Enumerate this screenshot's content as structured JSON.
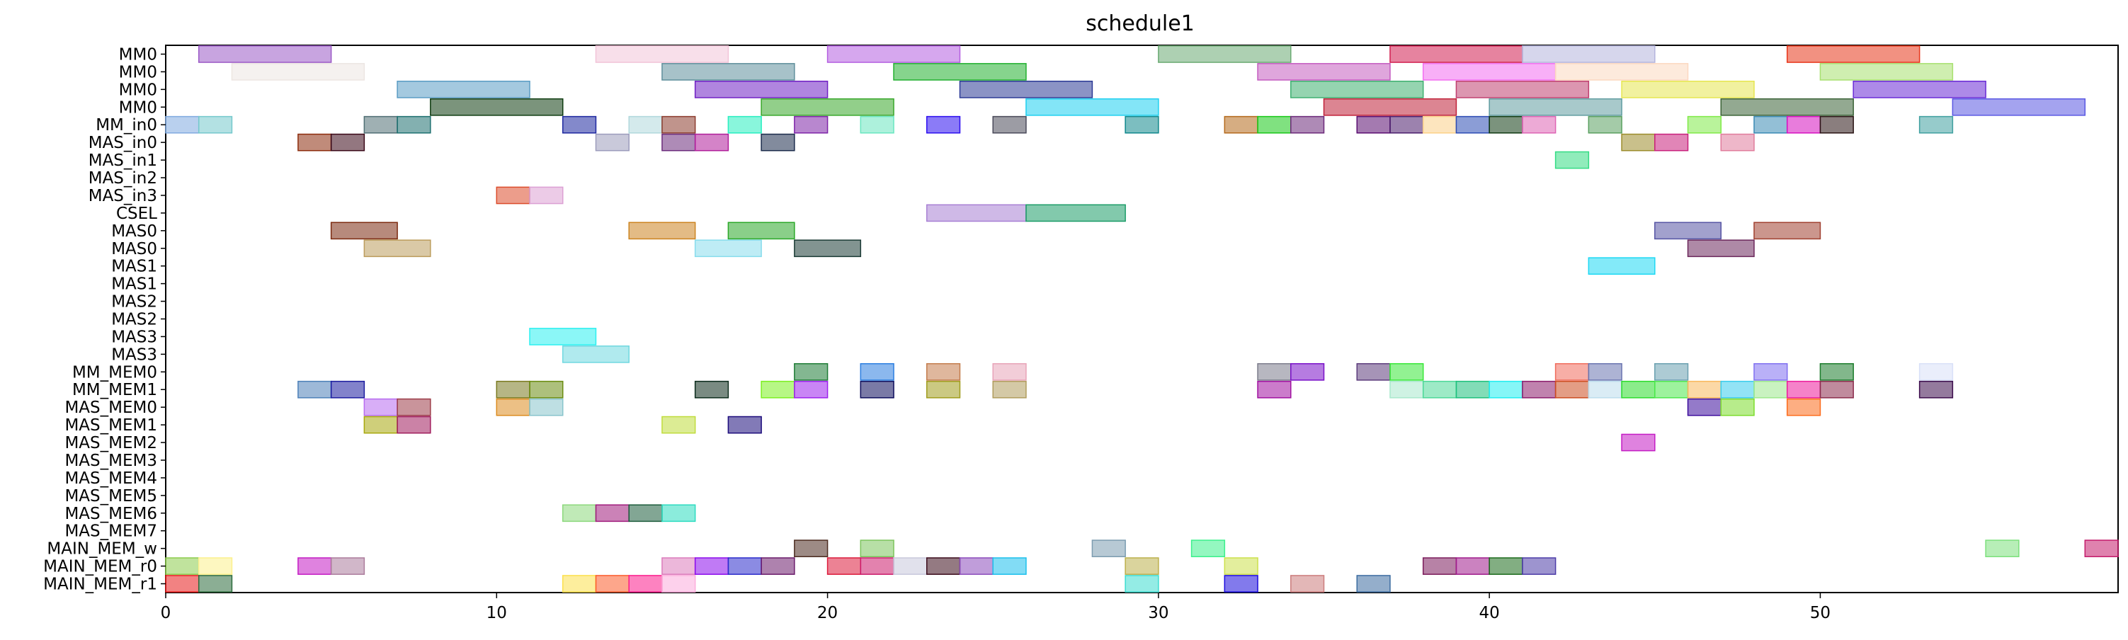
{
  "chart_data": {
    "type": "gantt",
    "title": "schedule1",
    "xlabel": "",
    "ylabel": "",
    "xlim": [
      0,
      59
    ],
    "xticks": [
      0,
      10,
      20,
      30,
      40,
      50
    ],
    "grid": false,
    "rows": [
      "MM0",
      "MM0",
      "MM0",
      "MM0",
      "MM_in0",
      "MAS_in0",
      "MAS_in1",
      "MAS_in2",
      "MAS_in3",
      "CSEL",
      "MAS0",
      "MAS0",
      "MAS1",
      "MAS1",
      "MAS2",
      "MAS2",
      "MAS3",
      "MAS3",
      "MM_MEM0",
      "MM_MEM1",
      "MAS_MEM0",
      "MAS_MEM1",
      "MAS_MEM2",
      "MAS_MEM3",
      "MAS_MEM4",
      "MAS_MEM5",
      "MAS_MEM6",
      "MAS_MEM7",
      "MAIN_MEM_w",
      "MAIN_MEM_r0",
      "MAIN_MEM_r1"
    ],
    "bars": [
      {
        "row": 0,
        "start": 1,
        "end": 5,
        "color": "#9b59c6"
      },
      {
        "row": 0,
        "start": 13,
        "end": 17,
        "color": "#f2c4d8"
      },
      {
        "row": 0,
        "start": 20,
        "end": 24,
        "color": "#b45fe0"
      },
      {
        "row": 0,
        "start": 30,
        "end": 34,
        "color": "#6aaa72"
      },
      {
        "row": 0,
        "start": 37,
        "end": 41,
        "color": "#d21e50"
      },
      {
        "row": 0,
        "start": 41,
        "end": 45,
        "color": "#b5b5dc"
      },
      {
        "row": 0,
        "start": 49,
        "end": 53,
        "color": "#e8361a"
      },
      {
        "row": 1,
        "start": 2,
        "end": 6,
        "color": "#ece6e2"
      },
      {
        "row": 1,
        "start": 15,
        "end": 19,
        "color": "#5f8f9c"
      },
      {
        "row": 1,
        "start": 22,
        "end": 26,
        "color": "#22b030"
      },
      {
        "row": 1,
        "start": 33,
        "end": 37,
        "color": "#c45cc0"
      },
      {
        "row": 1,
        "start": 38,
        "end": 42,
        "color": "#f26ef0"
      },
      {
        "row": 1,
        "start": 42,
        "end": 46,
        "color": "#fcd8c0"
      },
      {
        "row": 1,
        "start": 50,
        "end": 54,
        "color": "#a8e070"
      },
      {
        "row": 2,
        "start": 7,
        "end": 11,
        "color": "#5a9cc4"
      },
      {
        "row": 2,
        "start": 16,
        "end": 20,
        "color": "#7020c4"
      },
      {
        "row": 2,
        "start": 24,
        "end": 28,
        "color": "#2c3a96"
      },
      {
        "row": 2,
        "start": 34,
        "end": 38,
        "color": "#3eb070"
      },
      {
        "row": 2,
        "start": 39,
        "end": 43,
        "color": "#c04070"
      },
      {
        "row": 2,
        "start": 44,
        "end": 48,
        "color": "#e6e650"
      },
      {
        "row": 2,
        "start": 51,
        "end": 55,
        "color": "#6a2ad6"
      },
      {
        "row": 3,
        "start": 8,
        "end": 12,
        "color": "#0e3c10"
      },
      {
        "row": 3,
        "start": 18,
        "end": 22,
        "color": "#38a82a"
      },
      {
        "row": 3,
        "start": 26,
        "end": 30,
        "color": "#1ed0f0"
      },
      {
        "row": 3,
        "start": 35,
        "end": 39,
        "color": "#c02038"
      },
      {
        "row": 3,
        "start": 40,
        "end": 44,
        "color": "#609ca0"
      },
      {
        "row": 3,
        "start": 47,
        "end": 51,
        "color": "#3a6236"
      },
      {
        "row": 3,
        "start": 54,
        "end": 58,
        "color": "#5a58e2"
      },
      {
        "row": 4,
        "start": 0,
        "end": 1,
        "color": "#80aae0"
      },
      {
        "row": 4,
        "start": 1,
        "end": 2,
        "color": "#74c8cc"
      },
      {
        "row": 4,
        "start": 6,
        "end": 7,
        "color": "#506f74"
      },
      {
        "row": 4,
        "start": 7,
        "end": 8,
        "color": "#1e7070"
      },
      {
        "row": 4,
        "start": 12,
        "end": 13,
        "color": "#1e28a0"
      },
      {
        "row": 4,
        "start": 14,
        "end": 15,
        "color": "#b0d8dc"
      },
      {
        "row": 4,
        "start": 15,
        "end": 16,
        "color": "#8c3c2e"
      },
      {
        "row": 4,
        "start": 17,
        "end": 18,
        "color": "#28eec0"
      },
      {
        "row": 4,
        "start": 19,
        "end": 20,
        "color": "#7e24a8"
      },
      {
        "row": 4,
        "start": 21,
        "end": 22,
        "color": "#6ae6c0"
      },
      {
        "row": 4,
        "start": 23,
        "end": 24,
        "color": "#2c0ef0"
      },
      {
        "row": 4,
        "start": 25,
        "end": 26,
        "color": "#4a4a5a"
      },
      {
        "row": 4,
        "start": 29,
        "end": 30,
        "color": "#10888c"
      },
      {
        "row": 4,
        "start": 32,
        "end": 33,
        "color": "#b46a1c"
      },
      {
        "row": 4,
        "start": 33,
        "end": 34,
        "color": "#18c818"
      },
      {
        "row": 4,
        "start": 34,
        "end": 35,
        "color": "#6c2a7a"
      },
      {
        "row": 4,
        "start": 36,
        "end": 37,
        "color": "#5a0c70"
      },
      {
        "row": 4,
        "start": 37,
        "end": 38,
        "color": "#4a1c6c"
      },
      {
        "row": 4,
        "start": 38,
        "end": 39,
        "color": "#fcd088"
      },
      {
        "row": 4,
        "start": 39,
        "end": 40,
        "color": "#2c4cb4"
      },
      {
        "row": 4,
        "start": 40,
        "end": 41,
        "color": "#0e3a12"
      },
      {
        "row": 4,
        "start": 41,
        "end": 42,
        "color": "#de64b4"
      },
      {
        "row": 4,
        "start": 43,
        "end": 44,
        "color": "#5aa060"
      },
      {
        "row": 4,
        "start": 46,
        "end": 47,
        "color": "#80ea48"
      },
      {
        "row": 4,
        "start": 48,
        "end": 49,
        "color": "#3a8ab4"
      },
      {
        "row": 4,
        "start": 49,
        "end": 50,
        "color": "#d610c0"
      },
      {
        "row": 4,
        "start": 50,
        "end": 51,
        "color": "#2a1414"
      },
      {
        "row": 4,
        "start": 53,
        "end": 54,
        "color": "#40a0a0"
      },
      {
        "row": 5,
        "start": 4,
        "end": 5,
        "color": "#8c2c0c"
      },
      {
        "row": 5,
        "start": 5,
        "end": 6,
        "color": "#3a0818"
      },
      {
        "row": 5,
        "start": 13,
        "end": 14,
        "color": "#9c9cbc"
      },
      {
        "row": 5,
        "start": 15,
        "end": 16,
        "color": "#6c2c7c"
      },
      {
        "row": 5,
        "start": 16,
        "end": 17,
        "color": "#b01e9a"
      },
      {
        "row": 5,
        "start": 18,
        "end": 19,
        "color": "#1c2c4c"
      },
      {
        "row": 5,
        "start": 44,
        "end": 45,
        "color": "#9c8c2c"
      },
      {
        "row": 5,
        "start": 45,
        "end": 46,
        "color": "#c8207c"
      },
      {
        "row": 5,
        "start": 47,
        "end": 48,
        "color": "#e07c9c"
      },
      {
        "row": 6,
        "start": 42,
        "end": 43,
        "color": "#34dc84"
      },
      {
        "row": 8,
        "start": 10,
        "end": 11,
        "color": "#dc4c2c"
      },
      {
        "row": 8,
        "start": 11,
        "end": 12,
        "color": "#dca0d4"
      },
      {
        "row": 9,
        "start": 23,
        "end": 26,
        "color": "#a880d4"
      },
      {
        "row": 9,
        "start": 26,
        "end": 29,
        "color": "#1c9c68"
      },
      {
        "row": 10,
        "start": 5,
        "end": 7,
        "color": "#7c2a10"
      },
      {
        "row": 10,
        "start": 14,
        "end": 16,
        "color": "#cc8420"
      },
      {
        "row": 10,
        "start": 17,
        "end": 19,
        "color": "#2aa828"
      },
      {
        "row": 10,
        "start": 45,
        "end": 47,
        "color": "#5654a4"
      },
      {
        "row": 10,
        "start": 48,
        "end": 50,
        "color": "#a04030"
      },
      {
        "row": 11,
        "start": 6,
        "end": 8,
        "color": "#bc9c5c"
      },
      {
        "row": 11,
        "start": 16,
        "end": 18,
        "color": "#88dcec"
      },
      {
        "row": 11,
        "start": 19,
        "end": 21,
        "color": "#1c3c36"
      },
      {
        "row": 11,
        "start": 46,
        "end": 48,
        "color": "#6c285c"
      },
      {
        "row": 12,
        "start": 43,
        "end": 45,
        "color": "#1ed8f4"
      },
      {
        "row": 16,
        "start": 11,
        "end": 13,
        "color": "#2cf0f0"
      },
      {
        "row": 17,
        "start": 12,
        "end": 14,
        "color": "#70d8e0"
      },
      {
        "row": 18,
        "start": 19,
        "end": 20,
        "color": "#1e7c36"
      },
      {
        "row": 18,
        "start": 21,
        "end": 22,
        "color": "#2c7ee0"
      },
      {
        "row": 18,
        "start": 23,
        "end": 24,
        "color": "#c47c4c"
      },
      {
        "row": 18,
        "start": 25,
        "end": 26,
        "color": "#e8a4b8"
      },
      {
        "row": 18,
        "start": 33,
        "end": 34,
        "color": "#7c7c8c"
      },
      {
        "row": 18,
        "start": 34,
        "end": 35,
        "color": "#7a10c8"
      },
      {
        "row": 18,
        "start": 36,
        "end": 37,
        "color": "#5c3c7c"
      },
      {
        "row": 18,
        "start": 37,
        "end": 38,
        "color": "#38e838"
      },
      {
        "row": 18,
        "start": 42,
        "end": 43,
        "color": "#f06c5c"
      },
      {
        "row": 18,
        "start": 43,
        "end": 44,
        "color": "#6a74b0"
      },
      {
        "row": 18,
        "start": 45,
        "end": 46,
        "color": "#6aa0b0"
      },
      {
        "row": 18,
        "start": 48,
        "end": 49,
        "color": "#8070f0"
      },
      {
        "row": 18,
        "start": 50,
        "end": 51,
        "color": "#1c7c2c"
      },
      {
        "row": 18,
        "start": 53,
        "end": 54,
        "color": "#d8e0f8"
      },
      {
        "row": 19,
        "start": 4,
        "end": 5,
        "color": "#4c80b8"
      },
      {
        "row": 19,
        "start": 5,
        "end": 6,
        "color": "#1c1ca0"
      },
      {
        "row": 19,
        "start": 10,
        "end": 11,
        "color": "#7a7a20"
      },
      {
        "row": 19,
        "start": 11,
        "end": 12,
        "color": "#6a8c10"
      },
      {
        "row": 19,
        "start": 16,
        "end": 17,
        "color": "#0c2c1c"
      },
      {
        "row": 19,
        "start": 18,
        "end": 19,
        "color": "#7cf020"
      },
      {
        "row": 19,
        "start": 19,
        "end": 20,
        "color": "#9c20ec"
      },
      {
        "row": 19,
        "start": 21,
        "end": 22,
        "color": "#0c0c5c"
      },
      {
        "row": 19,
        "start": 23,
        "end": 24,
        "color": "#a09c1c"
      },
      {
        "row": 19,
        "start": 25,
        "end": 26,
        "color": "#b09c5c"
      },
      {
        "row": 19,
        "start": 33,
        "end": 34,
        "color": "#a010a0"
      },
      {
        "row": 19,
        "start": 37,
        "end": 38,
        "color": "#a8e8cc"
      },
      {
        "row": 19,
        "start": 38,
        "end": 39,
        "color": "#4cd898"
      },
      {
        "row": 19,
        "start": 39,
        "end": 40,
        "color": "#1cc07c"
      },
      {
        "row": 19,
        "start": 40,
        "end": 41,
        "color": "#20eef0"
      },
      {
        "row": 19,
        "start": 41,
        "end": 42,
        "color": "#8c1c6c"
      },
      {
        "row": 19,
        "start": 42,
        "end": 43,
        "color": "#cc4c20"
      },
      {
        "row": 19,
        "start": 43,
        "end": 44,
        "color": "#bcdcec"
      },
      {
        "row": 19,
        "start": 44,
        "end": 45,
        "color": "#2cdc2c"
      },
      {
        "row": 19,
        "start": 45,
        "end": 46,
        "color": "#4ce84c"
      },
      {
        "row": 19,
        "start": 46,
        "end": 47,
        "color": "#f8b85c"
      },
      {
        "row": 19,
        "start": 47,
        "end": 48,
        "color": "#38ccec"
      },
      {
        "row": 19,
        "start": 48,
        "end": 49,
        "color": "#9ce88c"
      },
      {
        "row": 19,
        "start": 49,
        "end": 50,
        "color": "#ec1c9c"
      },
      {
        "row": 19,
        "start": 50,
        "end": 51,
        "color": "#8c2c4c"
      },
      {
        "row": 19,
        "start": 53,
        "end": 54,
        "color": "#3c0c4c"
      },
      {
        "row": 20,
        "start": 6,
        "end": 7,
        "color": "#b86cf0"
      },
      {
        "row": 20,
        "start": 7,
        "end": 8,
        "color": "#9c3c48"
      },
      {
        "row": 20,
        "start": 10,
        "end": 11,
        "color": "#dc8c20"
      },
      {
        "row": 20,
        "start": 11,
        "end": 12,
        "color": "#88c4cc"
      },
      {
        "row": 20,
        "start": 46,
        "end": 47,
        "color": "#3c0c9c"
      },
      {
        "row": 20,
        "start": 47,
        "end": 48,
        "color": "#7cdc2c"
      },
      {
        "row": 20,
        "start": 49,
        "end": 50,
        "color": "#fc6c1c"
      },
      {
        "row": 21,
        "start": 6,
        "end": 7,
        "color": "#a8a80c"
      },
      {
        "row": 21,
        "start": 7,
        "end": 8,
        "color": "#a01c5c"
      },
      {
        "row": 21,
        "start": 15,
        "end": 16,
        "color": "#c0dc3c"
      },
      {
        "row": 21,
        "start": 17,
        "end": 18,
        "color": "#1c0c7c"
      },
      {
        "row": 22,
        "start": 44,
        "end": 45,
        "color": "#c41cc4"
      },
      {
        "row": 26,
        "start": 12,
        "end": 13,
        "color": "#8cd87c"
      },
      {
        "row": 26,
        "start": 13,
        "end": 14,
        "color": "#a01c7c"
      },
      {
        "row": 26,
        "start": 14,
        "end": 15,
        "color": "#1c5c3c"
      },
      {
        "row": 26,
        "start": 15,
        "end": 16,
        "color": "#2cdcc0"
      },
      {
        "row": 28,
        "start": 19,
        "end": 20,
        "color": "#4c2c20"
      },
      {
        "row": 28,
        "start": 21,
        "end": 22,
        "color": "#7cc45c"
      },
      {
        "row": 28,
        "start": 28,
        "end": 29,
        "color": "#7c9cb0"
      },
      {
        "row": 28,
        "start": 31,
        "end": 32,
        "color": "#3cf08c"
      },
      {
        "row": 28,
        "start": 55,
        "end": 56,
        "color": "#7ce07c"
      },
      {
        "row": 28,
        "start": 58,
        "end": 59,
        "color": "#c41c6c"
      },
      {
        "row": 29,
        "start": 0,
        "end": 1,
        "color": "#8ccc4c"
      },
      {
        "row": 29,
        "start": 1,
        "end": 2,
        "color": "#fcf08c"
      },
      {
        "row": 29,
        "start": 4,
        "end": 5,
        "color": "#c41cc4"
      },
      {
        "row": 29,
        "start": 5,
        "end": 6,
        "color": "#ac7c9c"
      },
      {
        "row": 29,
        "start": 15,
        "end": 16,
        "color": "#dc7cbc"
      },
      {
        "row": 29,
        "start": 16,
        "end": 17,
        "color": "#8c0cec"
      },
      {
        "row": 29,
        "start": 17,
        "end": 18,
        "color": "#2c2ccc"
      },
      {
        "row": 29,
        "start": 18,
        "end": 19,
        "color": "#6c1c6c"
      },
      {
        "row": 29,
        "start": 20,
        "end": 21,
        "color": "#dc1c3c"
      },
      {
        "row": 29,
        "start": 21,
        "end": 22,
        "color": "#cc1c6c"
      },
      {
        "row": 29,
        "start": 22,
        "end": 23,
        "color": "#c8c8dc"
      },
      {
        "row": 29,
        "start": 23,
        "end": 24,
        "color": "#3c0c1c"
      },
      {
        "row": 29,
        "start": 24,
        "end": 25,
        "color": "#8c4cbc"
      },
      {
        "row": 29,
        "start": 25,
        "end": 26,
        "color": "#1cc0ec"
      },
      {
        "row": 29,
        "start": 29,
        "end": 30,
        "color": "#bcb04c"
      },
      {
        "row": 29,
        "start": 32,
        "end": 33,
        "color": "#cce04c"
      },
      {
        "row": 29,
        "start": 38,
        "end": 39,
        "color": "#7c1c5c"
      },
      {
        "row": 29,
        "start": 39,
        "end": 40,
        "color": "#a01c8c"
      },
      {
        "row": 29,
        "start": 40,
        "end": 41,
        "color": "#1c6c1c"
      },
      {
        "row": 29,
        "start": 41,
        "end": 42,
        "color": "#4c3ca8"
      },
      {
        "row": 30,
        "start": 0,
        "end": 1,
        "color": "#e81c1c"
      },
      {
        "row": 30,
        "start": 1,
        "end": 2,
        "color": "#2c6c3c"
      },
      {
        "row": 30,
        "start": 12,
        "end": 13,
        "color": "#fce04c"
      },
      {
        "row": 30,
        "start": 13,
        "end": 14,
        "color": "#fc5c2c"
      },
      {
        "row": 30,
        "start": 14,
        "end": 15,
        "color": "#fc1c8c"
      },
      {
        "row": 30,
        "start": 15,
        "end": 16,
        "color": "#fcacdc"
      },
      {
        "row": 30,
        "start": 29,
        "end": 30,
        "color": "#3cdcd0"
      },
      {
        "row": 30,
        "start": 32,
        "end": 33,
        "color": "#1c0cdc"
      },
      {
        "row": 30,
        "start": 34,
        "end": 35,
        "color": "#cc7c7c"
      },
      {
        "row": 30,
        "start": 36,
        "end": 37,
        "color": "#3c6ca0"
      }
    ]
  }
}
